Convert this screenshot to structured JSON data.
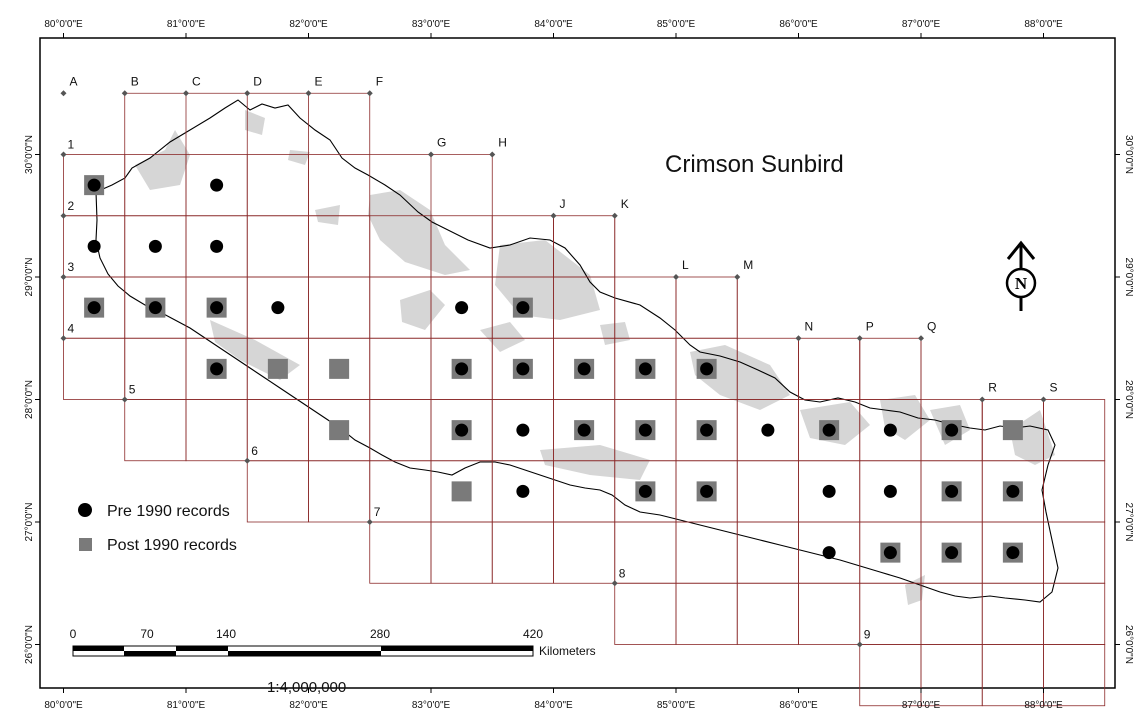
{
  "map": {
    "title": "Crimson Sunbird",
    "scale_ratio": "1:4,000,000",
    "lon_labels": [
      "80°0'0\"E",
      "81°0'0\"E",
      "82°0'0\"E",
      "83°0'0\"E",
      "84°0'0\"E",
      "85°0'0\"E",
      "86°0'0\"E",
      "87°0'0\"E",
      "88°0'0\"E"
    ],
    "lat_labels": [
      "30°0'0\"N",
      "29°0'0\"N",
      "28°0'0\"N",
      "27°0'0\"N",
      "26°0'0\"N"
    ],
    "column_letters": [
      "A",
      "B",
      "C",
      "D",
      "E",
      "F",
      "G",
      "H",
      "J",
      "K",
      "L",
      "M",
      "N",
      "P",
      "Q",
      "R",
      "S"
    ],
    "row_numbers": [
      "1",
      "2",
      "3",
      "4",
      "5",
      "6",
      "7",
      "8",
      "9"
    ],
    "legend": {
      "pre": {
        "label": "Pre 1990 records",
        "symbol": "black-circle"
      },
      "post": {
        "label": "Post 1990 records",
        "symbol": "grey-square"
      }
    },
    "scale_bar": {
      "ticks": [
        "0",
        "70",
        "140",
        "280",
        "420"
      ],
      "unit": "Kilometers"
    },
    "colors": {
      "grid_line": "#8b2a2a",
      "protected_area": "#d6d6d6",
      "square": "#7a7a7a",
      "dot": "#000000"
    },
    "records": [
      {
        "cell": [
          80.25,
          29.75
        ],
        "type": "post"
      },
      {
        "cell": [
          81.25,
          29.75
        ],
        "type": "pre"
      },
      {
        "cell": [
          80.25,
          29.25
        ],
        "type": "pre"
      },
      {
        "cell": [
          80.75,
          29.25
        ],
        "type": "pre"
      },
      {
        "cell": [
          81.25,
          29.25
        ],
        "type": "pre"
      },
      {
        "cell": [
          80.25,
          28.75
        ],
        "type": "post"
      },
      {
        "cell": [
          80.75,
          28.75
        ],
        "type": "post"
      },
      {
        "cell": [
          81.25,
          28.75
        ],
        "type": "post"
      },
      {
        "cell": [
          81.75,
          28.75
        ],
        "type": "pre"
      },
      {
        "cell": [
          83.25,
          28.75
        ],
        "type": "pre"
      },
      {
        "cell": [
          83.75,
          28.75
        ],
        "type": "post"
      },
      {
        "cell": [
          81.25,
          28.25
        ],
        "type": "post"
      },
      {
        "cell": [
          81.75,
          28.25
        ],
        "type": "post-only"
      },
      {
        "cell": [
          82.25,
          28.25
        ],
        "type": "post-only"
      },
      {
        "cell": [
          83.25,
          28.25
        ],
        "type": "post"
      },
      {
        "cell": [
          83.75,
          28.25
        ],
        "type": "post"
      },
      {
        "cell": [
          84.25,
          28.25
        ],
        "type": "post"
      },
      {
        "cell": [
          84.75,
          28.25
        ],
        "type": "post"
      },
      {
        "cell": [
          85.25,
          28.25
        ],
        "type": "post"
      },
      {
        "cell": [
          82.25,
          27.75
        ],
        "type": "post-only"
      },
      {
        "cell": [
          83.25,
          27.75
        ],
        "type": "post"
      },
      {
        "cell": [
          83.75,
          27.75
        ],
        "type": "pre"
      },
      {
        "cell": [
          84.25,
          27.75
        ],
        "type": "post"
      },
      {
        "cell": [
          84.75,
          27.75
        ],
        "type": "post"
      },
      {
        "cell": [
          85.25,
          27.75
        ],
        "type": "post"
      },
      {
        "cell": [
          85.75,
          27.75
        ],
        "type": "pre"
      },
      {
        "cell": [
          86.25,
          27.75
        ],
        "type": "post"
      },
      {
        "cell": [
          86.75,
          27.75
        ],
        "type": "pre"
      },
      {
        "cell": [
          87.25,
          27.75
        ],
        "type": "post"
      },
      {
        "cell": [
          87.75,
          27.75
        ],
        "type": "post-only"
      },
      {
        "cell": [
          83.25,
          27.25
        ],
        "type": "post-only"
      },
      {
        "cell": [
          83.75,
          27.25
        ],
        "type": "pre"
      },
      {
        "cell": [
          84.75,
          27.25
        ],
        "type": "post"
      },
      {
        "cell": [
          85.25,
          27.25
        ],
        "type": "post"
      },
      {
        "cell": [
          86.25,
          27.25
        ],
        "type": "pre"
      },
      {
        "cell": [
          86.75,
          27.25
        ],
        "type": "pre"
      },
      {
        "cell": [
          87.25,
          27.25
        ],
        "type": "post"
      },
      {
        "cell": [
          87.75,
          27.25
        ],
        "type": "post"
      },
      {
        "cell": [
          86.25,
          26.75
        ],
        "type": "pre"
      },
      {
        "cell": [
          86.75,
          26.75
        ],
        "type": "post"
      },
      {
        "cell": [
          87.25,
          26.75
        ],
        "type": "post"
      },
      {
        "cell": [
          87.75,
          26.75
        ],
        "type": "post"
      }
    ]
  }
}
